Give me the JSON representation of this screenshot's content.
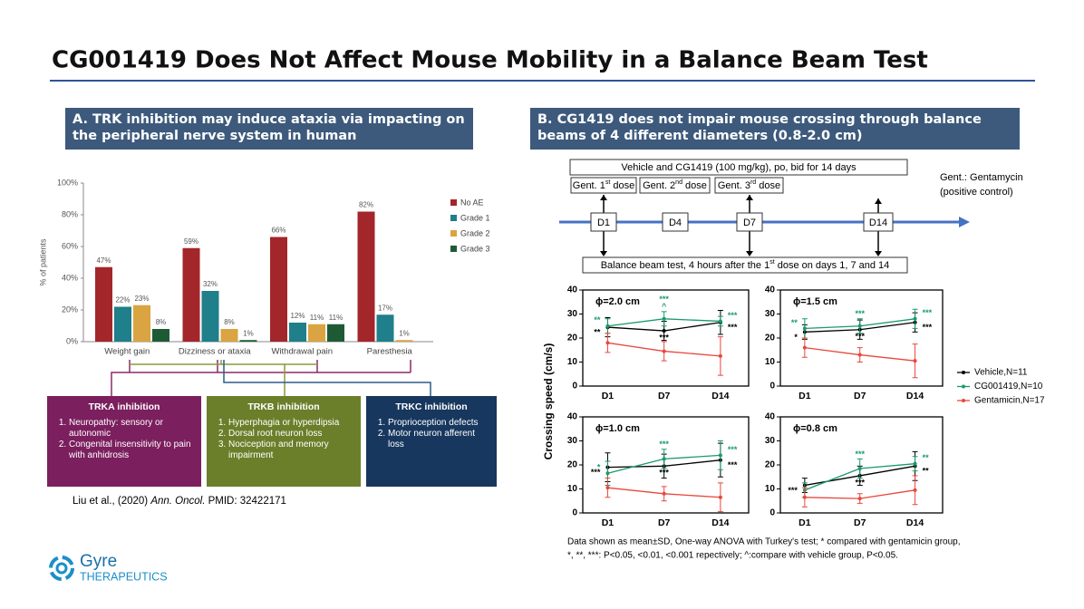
{
  "title": "CG001419 Does Not Affect Mouse Mobility in a Balance Beam Test",
  "panel_a": {
    "heading": "A. TRK inhibition may induce ataxia via impacting on the peripheral nerve system in human",
    "boxes": [
      {
        "title": "TRKA inhibition",
        "items": [
          "Neuropathy: sensory or autonomic",
          "Congenital insensitivity to pain with anhidrosis"
        ]
      },
      {
        "title": "TRKB inhibition",
        "items": [
          "Hyperphagia or hyperdipsia",
          "Dorsal root neuron loss",
          "Nociception and memory impairment"
        ]
      },
      {
        "title": "TRKC inhibition",
        "items": [
          "Proprioception defects",
          "Motor neuron afferent loss"
        ]
      }
    ],
    "citation": {
      "authors": "Liu et al., (2020)",
      "journal": "Ann. Oncol.",
      "pmid": "PMID: 32422171"
    }
  },
  "panel_b": {
    "heading": "B. CG1419 does not impair mouse crossing through balance beams of 4 different diameters (0.8-2.0 cm)",
    "treatment": "Vehicle and CG1419 (100 mg/kg), po, bid for 14 days",
    "doses": [
      {
        "text": "Gent. 1",
        "sup": "st",
        "rest": " dose"
      },
      {
        "text": "Gent. 2",
        "sup": "nd",
        "rest": " dose"
      },
      {
        "text": "Gent. 3",
        "sup": "rd",
        "rest": " dose"
      }
    ],
    "days": [
      "D1",
      "D4",
      "D7",
      "D14"
    ],
    "test": {
      "text": "Balance beam test, 4 hours after the 1",
      "sup": "st",
      "rest": " dose on days 1, 7 and 14"
    },
    "note": [
      "Gent.: Gentamycin",
      "(positive control)"
    ],
    "y_label": "Crossing speed (cm/s)",
    "footnote": [
      "Data shown as mean±SD, One-way ANOVA with Turkey's test; * compared with gentamicin group,",
      "*, **, ***: P<0.05, <0.01, <0.001 repectively; ^:compare with vehicle group, P<0.05."
    ]
  },
  "chart_data": [
    {
      "type": "bar",
      "y_label": "% of patients",
      "categories": [
        "Weight gain",
        "Dizziness or ataxia",
        "Withdrawal pain",
        "Paresthesia"
      ],
      "ylim": [
        0,
        100
      ],
      "yticks": [
        {
          "value": 0,
          "label": "0%"
        },
        {
          "value": 20,
          "label": "20%"
        },
        {
          "value": 40,
          "label": "40%"
        },
        {
          "value": 60,
          "label": "60%"
        },
        {
          "value": 80,
          "label": "80%"
        },
        {
          "value": 100,
          "label": "100%"
        }
      ],
      "series": [
        {
          "name": "No AE",
          "color": "#a3262a",
          "values": [
            47,
            59,
            66,
            82
          ],
          "value_labels": [
            "47%",
            "59%",
            "66%",
            "82%"
          ]
        },
        {
          "name": "Grade 1",
          "color": "#1f7f8a",
          "values": [
            22,
            32,
            12,
            17
          ],
          "value_labels": [
            "22%",
            "32%",
            "12%",
            "17%"
          ]
        },
        {
          "name": "Grade 2",
          "color": "#d9a441",
          "values": [
            23,
            8,
            11,
            1
          ],
          "value_labels": [
            "23%",
            "8%",
            "11%",
            "1%"
          ]
        },
        {
          "name": "Grade 3",
          "color": "#1e5b35",
          "values": [
            8,
            1,
            11,
            null
          ],
          "value_labels": [
            "8%",
            "1%",
            "11%",
            null
          ]
        }
      ]
    },
    {
      "type": "line",
      "title": "ϕ=2.0 cm",
      "categories": [
        "D1",
        "D7",
        "D14"
      ],
      "ylim": [
        0,
        40
      ],
      "yticks": [
        0,
        10,
        20,
        30,
        40
      ],
      "series": [
        {
          "name": "Vehicle,N=11",
          "color": "#000000",
          "values": [
            24.5,
            23,
            26.5
          ],
          "errors": [
            4,
            4,
            5
          ],
          "markers": [
            "**",
            "***",
            "***"
          ]
        },
        {
          "name": "CG001419,N=10",
          "color": "#1a9a6c",
          "values": [
            25,
            28,
            27
          ],
          "errors": [
            3,
            3,
            2
          ],
          "markers": [
            "**",
            [
              "^",
              "***"
            ],
            "***"
          ]
        },
        {
          "name": "Gentamicin,N=17",
          "color": "#e8473c",
          "values": [
            18,
            14.5,
            12.5
          ],
          "errors": [
            4,
            4,
            8
          ],
          "markers": [
            null,
            null,
            null
          ]
        }
      ]
    },
    {
      "type": "line",
      "title": "ϕ=1.5 cm",
      "categories": [
        "D1",
        "D7",
        "D14"
      ],
      "ylim": [
        0,
        40
      ],
      "yticks": [
        0,
        10,
        20,
        30,
        40
      ],
      "series": [
        {
          "name": "Vehicle,N=11",
          "color": "#000000",
          "values": [
            22.5,
            23.5,
            26.5
          ],
          "errors": [
            3,
            4,
            4
          ],
          "markers": [
            "*",
            "***",
            "***"
          ]
        },
        {
          "name": "CG001419,N=10",
          "color": "#1a9a6c",
          "values": [
            24,
            25,
            28
          ],
          "errors": [
            4,
            3,
            4
          ],
          "markers": [
            "**",
            "***",
            "***"
          ]
        },
        {
          "name": "Gentamicin,N=17",
          "color": "#e8473c",
          "values": [
            16,
            13,
            10.5
          ],
          "errors": [
            4,
            3,
            7
          ],
          "markers": [
            null,
            null,
            null
          ]
        }
      ]
    },
    {
      "type": "line",
      "title": "ϕ=1.0 cm",
      "categories": [
        "D1",
        "D7",
        "D14"
      ],
      "ylim": [
        0,
        40
      ],
      "yticks": [
        0,
        10,
        20,
        30,
        40
      ],
      "series": [
        {
          "name": "Vehicle,N=11",
          "color": "#000000",
          "values": [
            19,
            19.5,
            22
          ],
          "errors": [
            6,
            5,
            7
          ],
          "markers": [
            "***",
            "***",
            "***"
          ]
        },
        {
          "name": "CG001419,N=10",
          "color": "#1a9a6c",
          "values": [
            16.5,
            22.5,
            24
          ],
          "errors": [
            5,
            4,
            6
          ],
          "markers": [
            "*",
            "***",
            "***"
          ]
        },
        {
          "name": "Gentamicin,N=17",
          "color": "#e8473c",
          "values": [
            10.5,
            8,
            6.5
          ],
          "errors": [
            4,
            3,
            6
          ],
          "markers": [
            null,
            null,
            null
          ]
        }
      ]
    },
    {
      "type": "line",
      "title": "ϕ=0.8 cm",
      "categories": [
        "D1",
        "D7",
        "D14"
      ],
      "ylim": [
        0,
        40
      ],
      "yticks": [
        0,
        10,
        20,
        30,
        40
      ],
      "series": [
        {
          "name": "Vehicle,N=11",
          "color": "#000000",
          "values": [
            11.5,
            15.5,
            19.5
          ],
          "errors": [
            3,
            4,
            6
          ],
          "markers": [
            "***",
            "***",
            "**"
          ]
        },
        {
          "name": "CG001419,N=10",
          "color": "#1a9a6c",
          "values": [
            9.5,
            18.5,
            20.5
          ],
          "errors": [
            3,
            4,
            3
          ],
          "markers": [
            null,
            "***",
            "**"
          ]
        },
        {
          "name": "Gentamicin,N=17",
          "color": "#e8473c",
          "values": [
            6.5,
            6,
            9.5
          ],
          "errors": [
            4,
            2,
            6
          ],
          "markers": [
            null,
            null,
            null
          ]
        }
      ]
    }
  ],
  "logo": {
    "name": "Gyre",
    "sub": "THERAPEUTICS"
  }
}
